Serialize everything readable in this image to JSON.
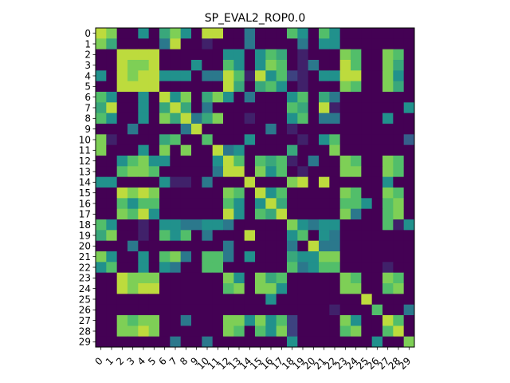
{
  "chart_data": {
    "type": "heatmap",
    "title": "SP_EVAL2_ROP0.0",
    "xlabel": "",
    "ylabel": "",
    "x_labels": [
      "0",
      "1",
      "2",
      "3",
      "4",
      "5",
      "6",
      "7",
      "8",
      "9",
      "10",
      "11",
      "12",
      "13",
      "14",
      "15",
      "16",
      "17",
      "18",
      "19",
      "20",
      "21",
      "22",
      "23",
      "24",
      "25",
      "26",
      "27",
      "28",
      "29"
    ],
    "y_labels": [
      "0",
      "1",
      "2",
      "3",
      "4",
      "5",
      "6",
      "7",
      "8",
      "9",
      "10",
      "11",
      "12",
      "13",
      "14",
      "15",
      "16",
      "17",
      "18",
      "19",
      "20",
      "21",
      "22",
      "23",
      "24",
      "25",
      "26",
      "27",
      "28",
      "29"
    ],
    "colormap": "viridis",
    "grid": false,
    "values": [
      [
        0.9,
        0.8,
        0,
        0,
        0.5,
        0,
        0.6,
        0.8,
        0.5,
        0,
        0.9,
        0.9,
        0,
        0,
        0.4,
        0,
        0,
        0,
        0.7,
        0.5,
        0,
        0.7,
        0.5,
        0,
        0,
        0,
        0,
        0,
        0,
        0
      ],
      [
        0.8,
        0.6,
        0,
        0,
        0,
        0,
        0.4,
        0.9,
        0,
        0,
        0.1,
        0,
        0,
        0,
        0.4,
        0,
        0,
        0,
        0,
        0.4,
        0,
        0.5,
        0.5,
        0,
        0,
        0,
        0,
        0,
        0,
        0
      ],
      [
        0,
        0,
        0.9,
        0.9,
        0.9,
        0.9,
        0,
        0,
        0,
        0,
        0,
        0,
        0.5,
        0.5,
        0,
        0.5,
        0.7,
        0.6,
        0,
        0.1,
        0,
        0,
        0,
        0.8,
        0.7,
        0,
        0,
        0.8,
        0.7,
        0
      ],
      [
        0,
        0,
        0.9,
        0.8,
        0.8,
        0.9,
        0,
        0,
        0,
        0.5,
        0,
        0,
        0.7,
        0.5,
        0,
        0.5,
        0.8,
        0.7,
        0,
        0.1,
        0.4,
        0,
        0,
        0.9,
        0.7,
        0,
        0,
        0.8,
        0.6,
        0
      ],
      [
        0.5,
        0,
        0.9,
        0.8,
        0.9,
        0.9,
        0.5,
        0.5,
        0.5,
        0,
        0.4,
        0.4,
        0.9,
        0.7,
        0.1,
        0.9,
        0.5,
        0.7,
        0.2,
        0.1,
        0,
        0.5,
        0.5,
        0.9,
        0.9,
        0,
        0,
        0.8,
        0.5,
        0
      ],
      [
        0,
        0,
        0.9,
        0.9,
        0.9,
        0.9,
        0,
        0,
        0,
        0,
        0,
        0,
        0.9,
        0.6,
        0,
        0.6,
        0.7,
        0.5,
        0,
        0.1,
        0,
        0,
        0,
        0.8,
        0.7,
        0,
        0,
        0.8,
        0.6,
        0
      ],
      [
        0.7,
        0.5,
        0,
        0,
        0.5,
        0,
        0.9,
        0.5,
        0.8,
        0,
        0.6,
        0.8,
        0.5,
        0,
        0.4,
        0,
        0,
        0,
        0.5,
        0.7,
        0,
        0.6,
        0.4,
        0,
        0,
        0,
        0,
        0,
        0,
        0
      ],
      [
        0.6,
        0.9,
        0,
        0,
        0.5,
        0,
        0.6,
        0.9,
        0.6,
        0,
        0.4,
        0,
        0,
        0,
        0,
        0,
        0,
        0,
        0.7,
        0.6,
        0,
        0.9,
        0.1,
        0,
        0,
        0,
        0,
        0,
        0,
        0.5
      ],
      [
        0.7,
        0.5,
        0,
        0,
        0.5,
        0,
        0.8,
        0.6,
        0.9,
        0.4,
        0.6,
        0.8,
        0,
        0,
        0.1,
        0,
        0,
        0,
        0.5,
        0.7,
        0,
        0.4,
        0.4,
        0,
        0,
        0,
        0,
        0.5,
        0,
        0
      ],
      [
        0,
        0,
        0,
        0.4,
        0,
        0,
        0,
        0,
        0.4,
        0.9,
        0,
        0,
        0,
        0,
        0,
        0,
        0.4,
        0,
        0.1,
        0,
        0,
        0,
        0,
        0,
        0,
        0,
        0,
        0,
        0,
        0
      ],
      [
        0.8,
        0.1,
        0,
        0,
        0,
        0,
        0.6,
        0.7,
        0,
        0,
        0.7,
        0,
        0,
        0,
        0.5,
        0,
        0,
        0,
        0,
        0.1,
        0,
        0.5,
        0.7,
        0,
        0,
        0,
        0,
        0,
        0,
        0.3
      ],
      [
        0.8,
        0,
        0,
        0,
        0.5,
        0,
        0.8,
        0,
        0.8,
        0,
        0,
        0.9,
        0.4,
        0.5,
        0,
        0,
        0,
        0,
        0.6,
        0,
        0,
        0,
        0.8,
        0,
        0,
        0,
        0,
        0,
        0,
        0
      ],
      [
        0,
        0,
        0.5,
        0.7,
        0.8,
        0.5,
        0.5,
        0,
        0,
        0,
        0,
        0.5,
        0.9,
        0.7,
        0,
        0.7,
        0.6,
        0.7,
        0.1,
        0,
        0.4,
        0,
        0,
        0.8,
        0.7,
        0,
        0,
        0.8,
        0.7,
        0
      ],
      [
        0,
        0,
        0.7,
        0.8,
        0.8,
        0.7,
        0,
        0,
        0,
        0,
        0,
        0.4,
        0.9,
        0.9,
        0,
        0.8,
        0.5,
        0.7,
        0,
        0.1,
        0,
        0,
        0,
        0.8,
        0.8,
        0,
        0,
        0.8,
        0.7,
        0
      ],
      [
        0.5,
        0.5,
        0,
        0,
        0,
        0,
        0.5,
        0.1,
        0.1,
        0,
        0.4,
        0,
        0,
        0,
        0.9,
        0,
        0,
        0,
        0.8,
        0.9,
        0,
        0.9,
        0,
        0,
        0,
        0,
        0,
        0.5,
        0,
        0
      ],
      [
        0,
        0,
        0.9,
        0.8,
        0.9,
        0.8,
        0,
        0,
        0,
        0,
        0,
        0,
        0.8,
        0.7,
        0,
        0.9,
        0.5,
        0.7,
        0,
        0,
        0,
        0,
        0,
        0.8,
        0.7,
        0,
        0,
        0.8,
        0.7,
        0
      ],
      [
        0,
        0,
        0.7,
        0.5,
        0.7,
        0.7,
        0,
        0,
        0,
        0,
        0,
        0,
        0.7,
        0.5,
        0,
        0.5,
        0.9,
        0.6,
        0,
        0,
        0,
        0,
        0,
        0.7,
        0.7,
        0.5,
        0,
        0.7,
        0.8,
        0
      ],
      [
        0,
        0,
        0.8,
        0.7,
        0.9,
        0.5,
        0,
        0,
        0,
        0,
        0,
        0,
        0.9,
        0.5,
        0,
        0.7,
        0.6,
        0.9,
        0,
        0,
        0,
        0,
        0,
        0.8,
        0.4,
        0,
        0,
        0.7,
        0.8,
        0
      ],
      [
        0.7,
        0.5,
        0,
        0,
        0.1,
        0,
        0.5,
        0.5,
        0.4,
        0.4,
        0.5,
        0.5,
        0.4,
        0,
        0,
        0,
        0,
        0,
        0.8,
        0.5,
        0.4,
        0.5,
        0.5,
        0,
        0,
        0,
        0,
        0.7,
        0.1,
        0.5
      ],
      [
        0.6,
        0.8,
        0,
        0,
        0.1,
        0,
        0.7,
        0.5,
        0.7,
        0,
        0.4,
        0,
        0,
        0,
        0.9,
        0,
        0,
        0,
        0.5,
        0.7,
        0,
        0.5,
        0.4,
        0,
        0,
        0,
        0,
        0,
        0,
        0
      ],
      [
        0,
        0,
        0,
        0.4,
        0,
        0,
        0,
        0,
        0,
        0,
        0,
        0,
        0.4,
        0,
        0,
        0,
        0,
        0,
        0.4,
        0,
        0.9,
        0.4,
        0.4,
        0,
        0,
        0,
        0,
        0,
        0,
        0
      ],
      [
        0.8,
        0.5,
        0,
        0,
        0.5,
        0,
        0.7,
        0.8,
        0.4,
        0,
        0.7,
        0.7,
        0.4,
        0,
        0.5,
        0,
        0,
        0,
        0.6,
        0.5,
        0.5,
        0.8,
        0.8,
        0,
        0,
        0,
        0,
        0,
        0,
        0
      ],
      [
        0.5,
        0.7,
        0,
        0,
        0.5,
        0,
        0.5,
        0.4,
        0,
        0,
        0.7,
        0.7,
        0,
        0,
        0,
        0,
        0,
        0,
        0.7,
        0.4,
        0.5,
        0.7,
        0.7,
        0,
        0,
        0,
        0,
        0.1,
        0,
        0
      ],
      [
        0,
        0,
        0.9,
        0.8,
        0.8,
        0.8,
        0,
        0,
        0,
        0,
        0,
        0,
        0.8,
        0.5,
        0,
        0.8,
        0.6,
        0.7,
        0,
        0,
        0,
        0,
        0,
        0.8,
        0.7,
        0,
        0,
        0.8,
        0.7,
        0
      ],
      [
        0,
        0,
        0.9,
        0.8,
        0.9,
        0.9,
        0,
        0,
        0,
        0,
        0,
        0,
        0.7,
        0.8,
        0,
        0.8,
        0.8,
        0.5,
        0,
        0,
        0,
        0,
        0,
        0.8,
        0.8,
        0,
        0,
        0.7,
        0.8,
        0
      ],
      [
        0,
        0,
        0,
        0,
        0,
        0,
        0,
        0,
        0,
        0,
        0,
        0,
        0,
        0,
        0,
        0,
        0.5,
        0,
        0,
        0,
        0,
        0,
        0,
        0,
        0,
        0.9,
        0,
        0,
        0,
        0
      ],
      [
        0,
        0,
        0,
        0,
        0,
        0,
        0,
        0,
        0,
        0,
        0,
        0,
        0,
        0,
        0,
        0,
        0,
        0,
        0,
        0,
        0,
        0,
        0.1,
        0,
        0,
        0,
        0.7,
        0,
        0,
        0.4
      ],
      [
        0,
        0,
        0.8,
        0.7,
        0.8,
        0.8,
        0,
        0,
        0.4,
        0,
        0,
        0,
        0.8,
        0.8,
        0.5,
        0.8,
        0.5,
        0.7,
        0.2,
        0,
        0,
        0,
        0,
        0.8,
        0.5,
        0,
        0,
        0.9,
        0.7,
        0
      ],
      [
        0,
        0,
        0.8,
        0.8,
        0.9,
        0.8,
        0,
        0,
        0,
        0,
        0,
        0,
        0.8,
        0.7,
        0,
        0.7,
        0.5,
        0.8,
        0.2,
        0,
        0,
        0,
        0,
        0.7,
        0.8,
        0,
        0,
        0.7,
        0.9,
        0
      ],
      [
        0,
        0,
        0,
        0,
        0,
        0,
        0,
        0.4,
        0,
        0,
        0.4,
        0,
        0,
        0,
        0,
        0,
        0,
        0,
        0.5,
        0,
        0,
        0,
        0,
        0,
        0,
        0,
        0.5,
        0,
        0,
        0.8
      ]
    ]
  }
}
